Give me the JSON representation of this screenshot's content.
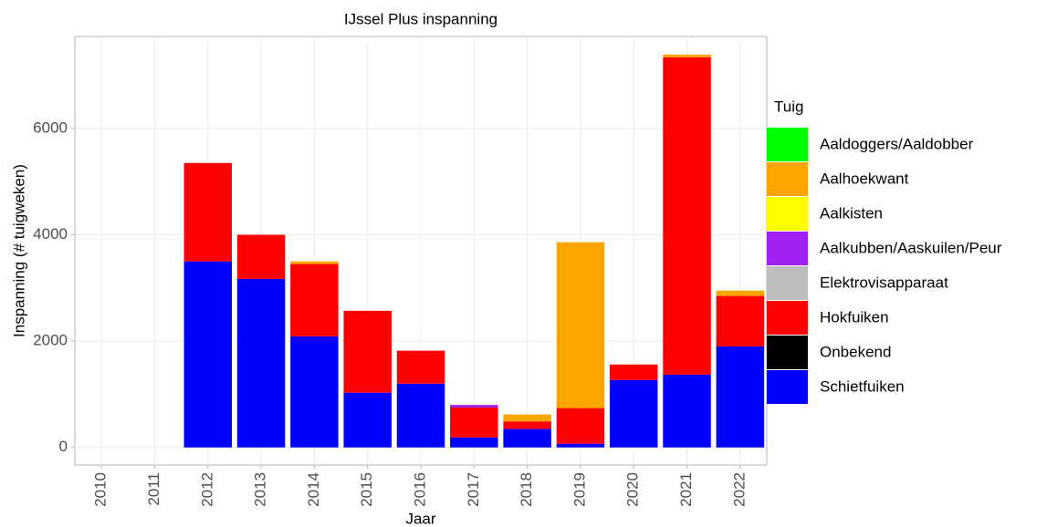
{
  "chart_data": {
    "type": "stacked_bar",
    "title": "IJssel Plus inspanning",
    "x_label": "Jaar",
    "y_label": "Inspanning (# tuigweken)",
    "legend_title": "Tuig",
    "legend": "right",
    "grid": true,
    "categories": [
      "2010",
      "2011",
      "2012",
      "2013",
      "2014",
      "2015",
      "2016",
      "2017",
      "2018",
      "2019",
      "2020",
      "2021",
      "2022"
    ],
    "series": [
      {
        "name": "Aaldoggers/Aaldobber",
        "color": "#00ff00",
        "values": [
          null,
          null,
          0,
          0,
          0,
          0,
          0,
          0,
          0,
          0,
          0,
          0,
          0
        ]
      },
      {
        "name": "Aalhoekwant",
        "color": "#ffa500",
        "values": [
          null,
          null,
          0,
          0,
          50,
          0,
          0,
          0,
          130,
          3120,
          0,
          50,
          100
        ]
      },
      {
        "name": "Aalkisten",
        "color": "#ffff00",
        "values": [
          null,
          null,
          0,
          0,
          0,
          0,
          0,
          0,
          0,
          0,
          0,
          0,
          0
        ]
      },
      {
        "name": "Aalkubben/Aaskuilen/Peur",
        "color": "#a020f0",
        "values": [
          null,
          null,
          0,
          0,
          0,
          0,
          0,
          50,
          0,
          0,
          0,
          0,
          0
        ]
      },
      {
        "name": "Elektrovisapparaat",
        "color": "#bebebe",
        "values": [
          null,
          null,
          0,
          0,
          0,
          0,
          0,
          0,
          0,
          0,
          0,
          0,
          0
        ]
      },
      {
        "name": "Hokfuiken",
        "color": "#ff0000",
        "values": [
          null,
          null,
          1850,
          830,
          1360,
          1540,
          620,
          560,
          140,
          670,
          290,
          5970,
          950
        ]
      },
      {
        "name": "Onbekend",
        "color": "#000000",
        "values": [
          null,
          null,
          0,
          0,
          0,
          0,
          0,
          0,
          0,
          0,
          0,
          0,
          0
        ]
      },
      {
        "name": "Schietfuiken",
        "color": "#0000ff",
        "values": [
          null,
          null,
          3500,
          3170,
          2090,
          1030,
          1200,
          190,
          350,
          70,
          1270,
          1370,
          1900
        ]
      }
    ],
    "ylim": [
      -330,
      7730
    ],
    "yticks": [
      0,
      2000,
      4000,
      6000
    ]
  }
}
